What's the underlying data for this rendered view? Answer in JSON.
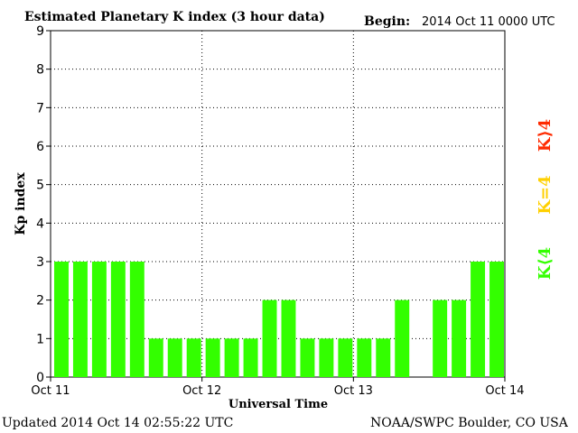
{
  "header": {
    "title": "Estimated Planetary K index (3 hour data)",
    "begin_label": "Begin:",
    "begin_value": "2014 Oct 11 0000 UTC"
  },
  "footer": {
    "updated": "Updated 2014 Oct 14 02:55:22 UTC",
    "source": "NOAA/SWPC Boulder, CO USA"
  },
  "legend": {
    "high": "K⟩4",
    "equal": "K=4",
    "low": "K⟨4",
    "colors": {
      "high": "#ff2a00",
      "equal": "#ffd000",
      "low": "#33ff00"
    }
  },
  "chart_data": {
    "type": "bar",
    "title": "Estimated Planetary K index (3 hour data)",
    "xlabel": "Universal Time",
    "ylabel": "Kp index",
    "ylim": [
      0,
      9
    ],
    "yticks": [
      "0",
      "1",
      "2",
      "3",
      "4",
      "5",
      "6",
      "7",
      "8",
      "9"
    ],
    "xticks": [
      "Oct 11",
      "Oct 12",
      "Oct 13",
      "Oct 14"
    ],
    "interval_hours": 3,
    "values": [
      3,
      3,
      3,
      3,
      3,
      1,
      1,
      1,
      1,
      1,
      1,
      2,
      2,
      1,
      1,
      1,
      1,
      1,
      2,
      null,
      2,
      2,
      3,
      3
    ],
    "bar_color": "#33ff00",
    "grid": "dotted, major lines at each integer Kp and each day boundary",
    "legend_position": "right"
  }
}
